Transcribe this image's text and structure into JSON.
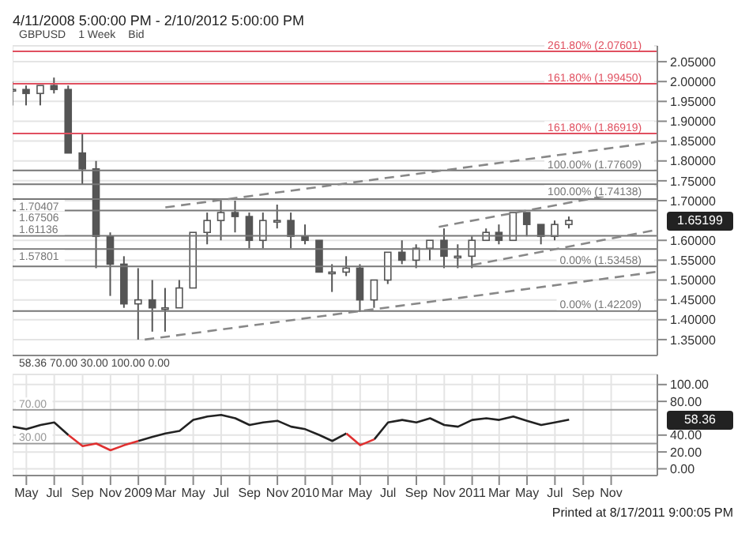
{
  "chart_data": [
    {
      "type": "candlestick",
      "title": "4/11/2008 5:00:00 PM - 2/10/2012 5:00:00 PM",
      "annotations": [
        "GBPUSD",
        "1 Week",
        "Bid",
        "1.65199"
      ],
      "color": "#555555",
      "x": [
        "2008-04",
        "2008-05",
        "2008-06",
        "2008-07",
        "2008-08",
        "2008-09",
        "2008-10",
        "2008-11",
        "2008-12",
        "2009-01",
        "2009-02",
        "2009-03",
        "2009-04",
        "2009-05",
        "2009-06",
        "2009-07",
        "2009-08",
        "2009-09",
        "2009-10",
        "2009-11",
        "2009-12",
        "2010-01",
        "2010-02",
        "2010-03",
        "2010-04",
        "2010-05",
        "2010-06",
        "2010-07",
        "2010-08",
        "2010-09",
        "2010-10",
        "2010-11",
        "2010-12",
        "2011-01",
        "2011-02",
        "2011-03",
        "2011-04",
        "2011-05",
        "2011-06",
        "2011-07",
        "2011-08"
      ],
      "ohlc": [
        [
          1.98,
          2.0,
          1.94,
          1.98
        ],
        [
          1.98,
          1.99,
          1.94,
          1.97
        ],
        [
          1.97,
          1.99,
          1.94,
          1.99
        ],
        [
          1.99,
          2.01,
          1.97,
          1.98
        ],
        [
          1.98,
          1.99,
          1.82,
          1.82
        ],
        [
          1.82,
          1.87,
          1.74,
          1.78
        ],
        [
          1.78,
          1.8,
          1.53,
          1.61
        ],
        [
          1.61,
          1.62,
          1.46,
          1.54
        ],
        [
          1.54,
          1.56,
          1.43,
          1.44
        ],
        [
          1.44,
          1.53,
          1.35,
          1.45
        ],
        [
          1.45,
          1.5,
          1.37,
          1.43
        ],
        [
          1.43,
          1.48,
          1.37,
          1.43
        ],
        [
          1.43,
          1.5,
          1.43,
          1.48
        ],
        [
          1.48,
          1.62,
          1.48,
          1.62
        ],
        [
          1.62,
          1.67,
          1.59,
          1.65
        ],
        [
          1.65,
          1.7,
          1.6,
          1.67
        ],
        [
          1.67,
          1.7,
          1.62,
          1.66
        ],
        [
          1.66,
          1.67,
          1.58,
          1.6
        ],
        [
          1.6,
          1.67,
          1.58,
          1.65
        ],
        [
          1.65,
          1.69,
          1.63,
          1.65
        ],
        [
          1.65,
          1.67,
          1.58,
          1.61
        ],
        [
          1.61,
          1.64,
          1.59,
          1.6
        ],
        [
          1.6,
          1.6,
          1.52,
          1.52
        ],
        [
          1.52,
          1.54,
          1.47,
          1.52
        ],
        [
          1.52,
          1.56,
          1.51,
          1.53
        ],
        [
          1.53,
          1.54,
          1.42,
          1.45
        ],
        [
          1.45,
          1.5,
          1.43,
          1.5
        ],
        [
          1.5,
          1.57,
          1.49,
          1.57
        ],
        [
          1.57,
          1.6,
          1.54,
          1.55
        ],
        [
          1.55,
          1.59,
          1.53,
          1.58
        ],
        [
          1.58,
          1.6,
          1.55,
          1.6
        ],
        [
          1.6,
          1.63,
          1.53,
          1.56
        ],
        [
          1.56,
          1.59,
          1.53,
          1.56
        ],
        [
          1.56,
          1.61,
          1.53,
          1.6
        ],
        [
          1.6,
          1.63,
          1.6,
          1.62
        ],
        [
          1.62,
          1.64,
          1.59,
          1.6
        ],
        [
          1.6,
          1.67,
          1.6,
          1.67
        ],
        [
          1.67,
          1.67,
          1.61,
          1.64
        ],
        [
          1.64,
          1.64,
          1.59,
          1.61
        ],
        [
          1.61,
          1.65,
          1.6,
          1.64
        ],
        [
          1.64,
          1.66,
          1.63,
          1.65
        ]
      ],
      "series": [
        {
          "type": "line",
          "color": "#888888",
          "line_style": "dashed",
          "x": [
            "2009-03-01",
            "2012-02-10"
          ],
          "values": [
            1.683,
            1.848
          ]
        },
        {
          "type": "line",
          "color": "#888888",
          "line_style": "dashed",
          "x": [
            "2010-10-20",
            "2012-02-10"
          ],
          "values": [
            1.634,
            1.736
          ]
        },
        {
          "type": "line",
          "color": "#888888",
          "line_style": "dashed",
          "x": [
            "2011-01-01",
            "2012-02-10"
          ],
          "values": [
            1.538,
            1.627
          ]
        },
        {
          "type": "line",
          "color": "#888888",
          "line_style": "dashed",
          "x": [
            "2009-01-15",
            "2012-02-10"
          ],
          "values": [
            1.35,
            1.521
          ]
        }
      ],
      "xlim": [
        "2008-04-01",
        "2012-02-10"
      ],
      "xticks": [
        "2008-05",
        "2008-07",
        "2008-09",
        "2008-11",
        "2009-01",
        "2009-03",
        "2009-05",
        "2009-07",
        "2009-09",
        "2009-11",
        "2010-01",
        "2010-03",
        "2010-05",
        "2010-07",
        "2010-09",
        "2010-11",
        "2011-01",
        "2011-03",
        "2011-05",
        "2011-07",
        "2011-09",
        "2011-11"
      ],
      "tick_labels": "y",
      "ylim": [
        1.31,
        2.09
      ],
      "yticks": [
        {
          "value": 1.35,
          "label": "1.35000"
        },
        {
          "value": 1.4,
          "label": "1.40000"
        },
        {
          "value": 1.45,
          "label": "1.45000"
        },
        {
          "value": 1.5,
          "label": "1.50000"
        },
        {
          "value": 1.55,
          "label": "1.55000"
        },
        {
          "value": 1.6,
          "label": "1.60000"
        },
        {
          "value": 1.7,
          "label": "1.70000"
        },
        {
          "value": 1.75,
          "label": "1.75000"
        },
        {
          "value": 1.8,
          "label": "1.80000"
        },
        {
          "value": 1.85,
          "label": "1.85000"
        },
        {
          "value": 1.9,
          "label": "1.90000"
        },
        {
          "value": 1.95,
          "label": "1.95000"
        },
        {
          "value": 2.0,
          "label": "2.00000"
        },
        {
          "value": 2.05,
          "label": "2.05000"
        }
      ],
      "grid": true,
      "ref_lines": [
        {
          "axis": "y",
          "value": 2.07601,
          "label": "261.80% (2.07601)",
          "color": "#e05060"
        },
        {
          "axis": "y",
          "value": 1.9945,
          "label": "161.80% (1.99450)",
          "color": "#e05060"
        },
        {
          "axis": "y",
          "value": 1.86919,
          "label": "161.80% (1.86919)",
          "color": "#e05060"
        },
        {
          "axis": "y",
          "value": 1.77609,
          "label": "100.00% (1.77609)",
          "color": "#777777"
        },
        {
          "axis": "y",
          "value": 1.74138,
          "label": "100.00% (1.74138)",
          "color": "#777777"
        },
        {
          "axis": "y",
          "value": 1.70407,
          "label": "1.70407",
          "color": "#777777"
        },
        {
          "axis": "y",
          "value": 1.67506,
          "label": "1.67506",
          "color": "#777777"
        },
        {
          "axis": "y",
          "value": 1.61136,
          "label": "1.61136",
          "color": "#777777"
        },
        {
          "axis": "y",
          "value": 1.57801,
          "label": "1.57801",
          "color": "#777777"
        },
        {
          "axis": "y",
          "value": 1.53458,
          "label": "0.00% (1.53458)",
          "color": "#777777"
        },
        {
          "axis": "y",
          "value": 1.42209,
          "label": "0.00% (1.42209)",
          "color": "#777777"
        }
      ]
    },
    {
      "type": "line",
      "annotations": [
        "58.36 70.00 30.00 100.00 0.00",
        "Printed at 8/17/2011 9:00:05 PM",
        "58.36"
      ],
      "x": [
        "2008-04",
        "2008-05",
        "2008-06",
        "2008-07",
        "2008-08",
        "2008-09",
        "2008-10",
        "2008-11",
        "2008-12",
        "2009-01",
        "2009-02",
        "2009-03",
        "2009-04",
        "2009-05",
        "2009-06",
        "2009-07",
        "2009-08",
        "2009-09",
        "2009-10",
        "2009-11",
        "2009-12",
        "2010-01",
        "2010-02",
        "2010-03",
        "2010-04",
        "2010-05",
        "2010-06",
        "2010-07",
        "2010-08",
        "2010-09",
        "2010-10",
        "2010-11",
        "2010-12",
        "2011-01",
        "2011-02",
        "2011-03",
        "2011-04",
        "2011-05",
        "2011-06",
        "2011-07",
        "2011-08"
      ],
      "series": [
        {
          "color": "#222222",
          "values": [
            50,
            47,
            52,
            55,
            40,
            null,
            null,
            null,
            null,
            33,
            38,
            42,
            45,
            58,
            62,
            64,
            60,
            52,
            55,
            57,
            50,
            47,
            40,
            33,
            42,
            null,
            35,
            55,
            58,
            55,
            60,
            52,
            50,
            58,
            60,
            58,
            62,
            57,
            52,
            55,
            58.36
          ]
        },
        {
          "color": "#e03030",
          "values": [
            null,
            null,
            null,
            null,
            40,
            27,
            30,
            22,
            28,
            33,
            null,
            null,
            null,
            null,
            null,
            null,
            null,
            null,
            null,
            null,
            null,
            null,
            null,
            null,
            42,
            28,
            35,
            null,
            null,
            null,
            null,
            null,
            null,
            null,
            null,
            null,
            null,
            null,
            null,
            null,
            null
          ]
        }
      ],
      "xlim": [
        "2008-04-01",
        "2012-02-10"
      ],
      "xticks": [
        {
          "value": "2008-05",
          "label": "May"
        },
        {
          "value": "2008-07",
          "label": "Jul"
        },
        {
          "value": "2008-09",
          "label": "Sep"
        },
        {
          "value": "2008-11",
          "label": "Nov"
        },
        {
          "value": "2009-01",
          "label": "2009"
        },
        {
          "value": "2009-03",
          "label": "Mar"
        },
        {
          "value": "2009-05",
          "label": "May"
        },
        {
          "value": "2009-07",
          "label": "Jul"
        },
        {
          "value": "2009-09",
          "label": "Sep"
        },
        {
          "value": "2009-11",
          "label": "Nov"
        },
        {
          "value": "2010-01",
          "label": "2010"
        },
        {
          "value": "2010-03",
          "label": "Mar"
        },
        {
          "value": "2010-05",
          "label": "May"
        },
        {
          "value": "2010-07",
          "label": "Jul"
        },
        {
          "value": "2010-09",
          "label": "Sep"
        },
        {
          "value": "2010-11",
          "label": "Nov"
        },
        {
          "value": "2011-01",
          "label": "2011"
        },
        {
          "value": "2011-03",
          "label": "Mar"
        },
        {
          "value": "2011-05",
          "label": "May"
        },
        {
          "value": "2011-07",
          "label": "Jul"
        },
        {
          "value": "2011-09",
          "label": "Sep"
        },
        {
          "value": "2011-11",
          "label": "Nov"
        }
      ],
      "ylim": [
        -8,
        112
      ],
      "yticks": [
        {
          "value": 0,
          "label": "0.00"
        },
        {
          "value": 20,
          "label": "20.00"
        },
        {
          "value": 40,
          "label": "40.00"
        },
        {
          "value": 80,
          "label": "80.00"
        },
        {
          "value": 100,
          "label": "100.00"
        }
      ],
      "grid": true,
      "ref_lines": [
        {
          "axis": "y",
          "value": 70,
          "label": "70.00",
          "color": "#999999"
        },
        {
          "axis": "y",
          "value": 30,
          "label": "30.00",
          "color": "#999999"
        }
      ]
    }
  ]
}
